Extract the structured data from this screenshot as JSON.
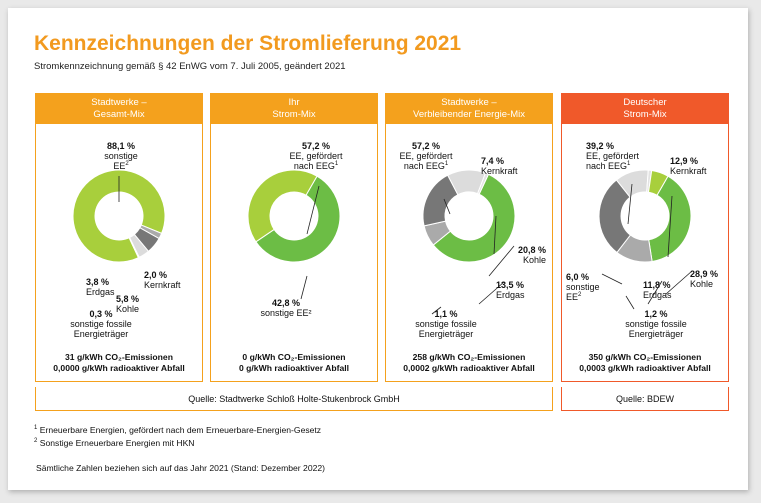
{
  "title": "Kennzeichnungen der Stromlieferung 2021",
  "subtitle": "Stromkennzeichnung gemäß § 42 EnWG vom 7. Juli 2005, geändert 2021",
  "colors": {
    "accent": "#f29a1f",
    "deutscher_header": "#f0592a",
    "ee_eeg": "#6cbd45",
    "sonstige_ee": "#a8cf3c",
    "kernkraft": "#aaaaaa",
    "kohle": "#777777",
    "erdgas": "#dcdcdc",
    "sonstige_fossile": "#e3e3e3"
  },
  "chart_data": [
    {
      "type": "pie",
      "title_line1": "Stadtwerke –",
      "title_line2": "Gesamt-Mix",
      "slices": [
        {
          "label": "sonstige EE²",
          "value": 88.1,
          "value_text": "88,1 %",
          "color": "#a8cf3c"
        },
        {
          "label": "Kernkraft",
          "value": 2.0,
          "value_text": "2,0 %",
          "color": "#aaaaaa"
        },
        {
          "label": "Kohle",
          "value": 5.8,
          "value_text": "5,8 %",
          "color": "#777777"
        },
        {
          "label": "Erdgas",
          "value": 3.8,
          "value_text": "3,8 %",
          "color": "#dcdcdc"
        },
        {
          "label": "sonstige fossile Energieträger",
          "value": 0.3,
          "value_text": "0,3 %",
          "color": "#e3e3e3"
        }
      ],
      "emission_line": "31 g/kWh CO₂-Emissionen",
      "waste_line": "0,0000 g/kWh radioaktiver Abfall"
    },
    {
      "type": "pie",
      "title_line1": "Ihr",
      "title_line2": "Strom-Mix",
      "slices": [
        {
          "label": "EE, gefördert nach EEG¹",
          "value": 57.2,
          "value_text": "57,2 %",
          "color": "#6cbd45"
        },
        {
          "label": "sonstige EE²",
          "value": 42.8,
          "value_text": "42,8 %",
          "color": "#a8cf3c"
        }
      ],
      "emission_line": "0 g/kWh CO₂-Emissionen",
      "waste_line": "0 g/kWh radioaktiver Abfall"
    },
    {
      "type": "pie",
      "title_line1": "Stadtwerke –",
      "title_line2": "Verbleibender Energie-Mix",
      "slices": [
        {
          "label": "EE, gefördert nach EEG¹",
          "value": 57.2,
          "value_text": "57,2 %",
          "color": "#6cbd45"
        },
        {
          "label": "Kernkraft",
          "value": 7.4,
          "value_text": "7,4 %",
          "color": "#aaaaaa"
        },
        {
          "label": "Kohle",
          "value": 20.8,
          "value_text": "20,8 %",
          "color": "#777777"
        },
        {
          "label": "Erdgas",
          "value": 13.5,
          "value_text": "13,5 %",
          "color": "#dcdcdc"
        },
        {
          "label": "sonstige fossile Energieträger",
          "value": 1.1,
          "value_text": "1,1 %",
          "color": "#e3e3e3"
        }
      ],
      "emission_line": "258 g/kWh CO₂-Emissionen",
      "waste_line": "0,0002 g/kWh radioaktiver Abfall"
    },
    {
      "type": "pie",
      "title_line1": "Deutscher",
      "title_line2": "Strom-Mix",
      "slices": [
        {
          "label": "EE, gefördert nach EEG¹",
          "value": 39.2,
          "value_text": "39,2 %",
          "color": "#6cbd45"
        },
        {
          "label": "Kernkraft",
          "value": 12.9,
          "value_text": "12,9 %",
          "color": "#aaaaaa"
        },
        {
          "label": "Kohle",
          "value": 28.9,
          "value_text": "28,9 %",
          "color": "#777777"
        },
        {
          "label": "Erdgas",
          "value": 11.8,
          "value_text": "11,8 %",
          "color": "#dcdcdc"
        },
        {
          "label": "sonstige fossile Energieträger",
          "value": 1.2,
          "value_text": "1,2 %",
          "color": "#e3e3e3"
        },
        {
          "label": "sonstige EE²",
          "value": 6.0,
          "value_text": "6,0 %",
          "color": "#a8cf3c"
        }
      ],
      "emission_line": "350 g/kWh CO₂-Emissionen",
      "waste_line": "0,0003 g/kWh radioaktiver Abfall"
    }
  ],
  "source_stadtwerke": "Quelle: Stadtwerke Schloß Holte-Stukenbrock GmbH",
  "source_bdew": "Quelle: BDEW",
  "footnote1": "Erneuerbare Energien, gefördert nach dem Erneuerbare-Energien-Gesetz",
  "footnote2": "Sonstige Erneuerbare Energien mit HKN",
  "note": "Sämtliche Zahlen beziehen sich auf das Jahr 2021 (Stand: Dezember 2022)"
}
